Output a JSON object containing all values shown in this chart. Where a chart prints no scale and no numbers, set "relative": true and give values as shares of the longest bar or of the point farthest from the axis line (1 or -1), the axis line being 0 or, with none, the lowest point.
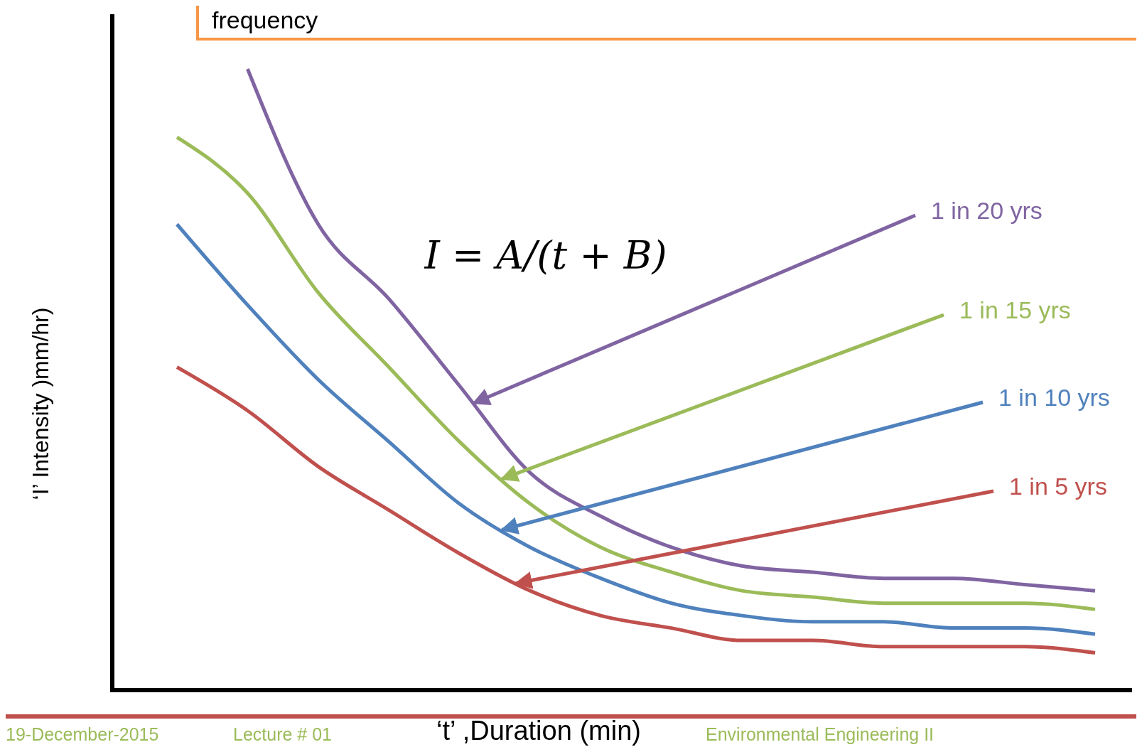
{
  "chart_data": {
    "type": "line",
    "relative": true,
    "title": "frequency",
    "xlabel": "‘t’ ,Duration (min)",
    "ylabel": "‘I’ Intensity )mm/hr)",
    "categories": [
      null,
      null,
      null,
      null,
      null,
      null,
      null,
      null,
      null,
      null,
      null,
      null,
      null,
      null
    ],
    "series": [
      {
        "name": "1 in 20 yrs",
        "color": "#8064a2",
        "values": [
          null,
          1,
          0.75,
          0.63,
          0.49,
          0.35,
          0.28,
          0.23,
          0.2,
          0.19,
          0.18,
          0.18,
          0.17,
          0.16
        ]
      },
      {
        "name": "1 in 15 yrs",
        "color": "#9bbb59",
        "values": [
          0.89,
          0.8,
          0.64,
          0.52,
          0.4,
          0.3,
          0.23,
          0.19,
          0.16,
          0.15,
          0.14,
          0.14,
          0.14,
          0.13
        ]
      },
      {
        "name": "1 in 10 yrs",
        "color": "#4f81bd",
        "values": [
          0.75,
          0.62,
          0.5,
          0.4,
          0.3,
          0.23,
          0.18,
          0.14,
          0.12,
          0.11,
          0.11,
          0.1,
          0.1,
          0.09
        ]
      },
      {
        "name": "1 in 5 yrs",
        "color": "#c0504d",
        "values": [
          0.52,
          0.45,
          0.36,
          0.29,
          0.22,
          0.16,
          0.12,
          0.1,
          0.08,
          0.08,
          0.07,
          0.07,
          0.07,
          0.06
        ]
      }
    ],
    "annotations": [
      "I = A/(t + B)",
      "19-December-2015",
      "Lecture # 01",
      "Environmental Engineering II"
    ],
    "line_style": "solid"
  }
}
